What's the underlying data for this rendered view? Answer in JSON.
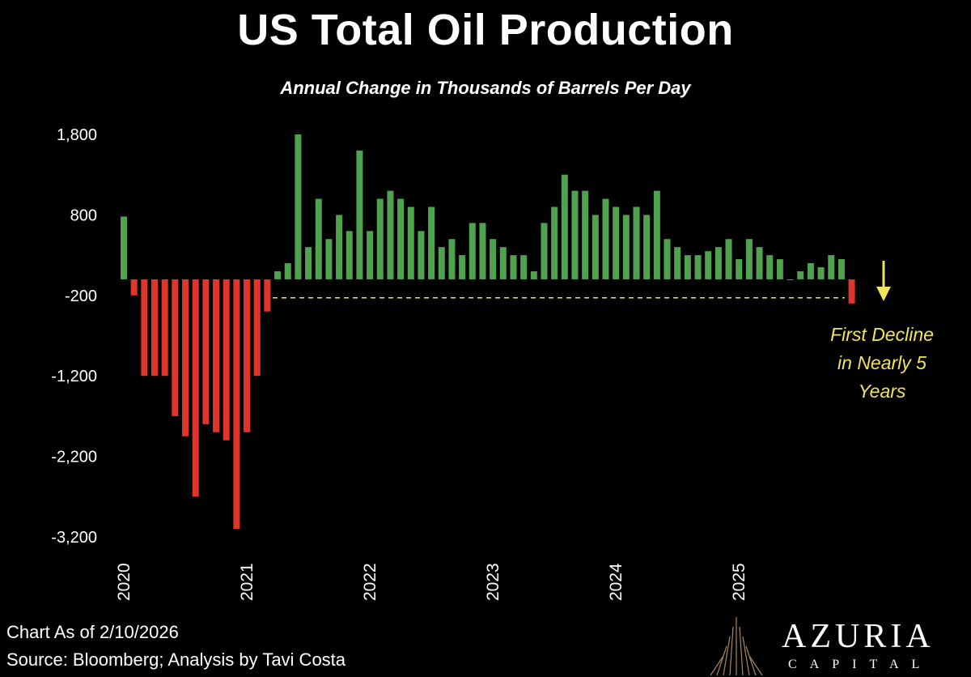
{
  "title": "US Total Oil Production",
  "subtitle": "Annual Change in Thousands of Barrels Per Day",
  "annotation": {
    "lines": [
      "First Decline",
      "in Nearly 5",
      "Years"
    ]
  },
  "footer": {
    "as_of": "Chart As of 2/10/2026",
    "source": "Source: Bloomberg; Analysis by Tavi Costa"
  },
  "brand": {
    "name": "AZURIA",
    "tagline": "CAPITAL"
  },
  "colors": {
    "positive": "#4fa34f",
    "negative": "#e0352b",
    "annotation": "#f2e45a",
    "reference_line": "#f2e45a",
    "text": "#ffffff",
    "background": "#000000"
  },
  "chart_data": {
    "type": "bar",
    "title": "US Total Oil Production",
    "subtitle": "Annual Change in Thousands of Barrels Per Day",
    "ylim": [
      -3200,
      1800
    ],
    "yticks": [
      1800,
      800,
      -200,
      -1200,
      -2200,
      -3200
    ],
    "ytick_labels": [
      "1,800",
      "800",
      "-200",
      "-1,200",
      "-2,200",
      "-3,200"
    ],
    "x_start": "2020-01",
    "x_labels": [
      {
        "label": "2020",
        "index": 0
      },
      {
        "label": "2021",
        "index": 12
      },
      {
        "label": "2022",
        "index": 24
      },
      {
        "label": "2023",
        "index": 36
      },
      {
        "label": "2024",
        "index": 48
      },
      {
        "label": "2025",
        "index": 60
      }
    ],
    "values": [
      780,
      -200,
      -1200,
      -1200,
      -1200,
      -1700,
      -1950,
      -2700,
      -1800,
      -1900,
      -2000,
      -3100,
      -1900,
      -1200,
      -400,
      100,
      200,
      1800,
      400,
      1000,
      500,
      800,
      600,
      1600,
      600,
      1000,
      1100,
      1000,
      900,
      600,
      900,
      400,
      500,
      300,
      700,
      700,
      500,
      400,
      300,
      300,
      100,
      700,
      900,
      1300,
      1100,
      1100,
      800,
      1000,
      900,
      800,
      900,
      800,
      1100,
      500,
      400,
      300,
      300,
      350,
      400,
      500,
      250,
      500,
      400,
      300,
      250,
      0,
      100,
      200,
      150,
      300,
      250,
      -300
    ],
    "reference_line": {
      "value": -200,
      "style": "dashed"
    },
    "grid": false,
    "legend": "none"
  }
}
